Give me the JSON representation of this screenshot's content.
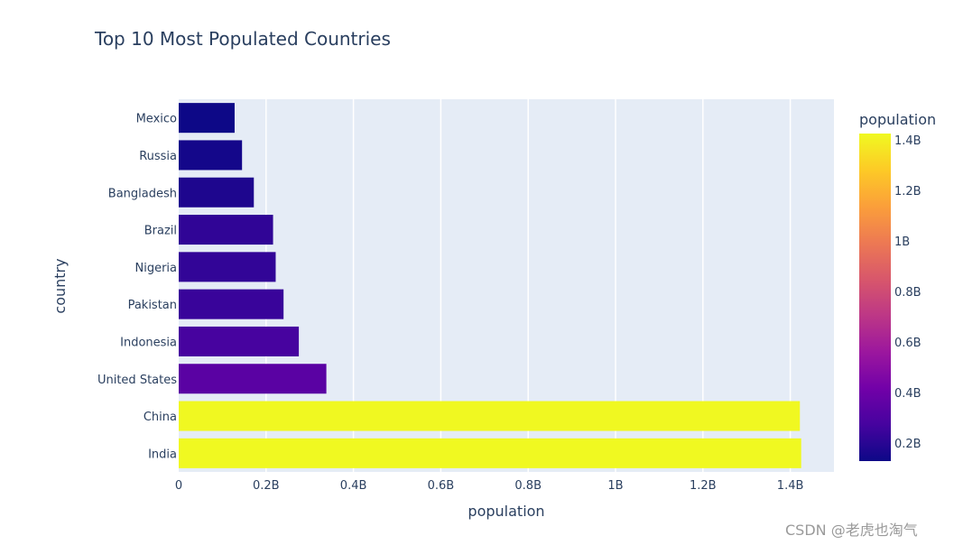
{
  "chart_data": {
    "type": "bar",
    "orientation": "horizontal",
    "title": "Top 10 Most Populated Countries",
    "xlabel": "population",
    "ylabel": "country",
    "categories": [
      "India",
      "China",
      "United States",
      "Indonesia",
      "Pakistan",
      "Nigeria",
      "Brazil",
      "Bangladesh",
      "Russia",
      "Mexico"
    ],
    "values": [
      1425000000,
      1422000000,
      338000000,
      275000000,
      240000000,
      222000000,
      216000000,
      172000000,
      145000000,
      128000000
    ],
    "xlim": [
      0,
      1500000000
    ],
    "xticks": [
      0,
      200000000,
      400000000,
      600000000,
      800000000,
      1000000000,
      1200000000,
      1400000000
    ],
    "xtick_labels": [
      "0",
      "0.2B",
      "0.4B",
      "0.6B",
      "0.8B",
      "1B",
      "1.2B",
      "1.4B"
    ],
    "grid": true,
    "colorbar": {
      "title": "population",
      "range": [
        128000000,
        1425000000
      ],
      "ticks": [
        200000000,
        400000000,
        600000000,
        800000000,
        1000000000,
        1200000000,
        1400000000
      ],
      "tick_labels": [
        "0.2B",
        "0.4B",
        "0.6B",
        "0.8B",
        "1B",
        "1.2B",
        "1.4B"
      ],
      "colors": [
        "#0d0887",
        "#46039f",
        "#7201a8",
        "#9c179e",
        "#bd3786",
        "#d8576b",
        "#ed7953",
        "#fb9f3a",
        "#fdca26",
        "#f0f921"
      ]
    },
    "plot_bgcolor": "#e5ecf6",
    "text_color": "#2a3f5f"
  },
  "watermark": "CSDN @老虎也淘气"
}
